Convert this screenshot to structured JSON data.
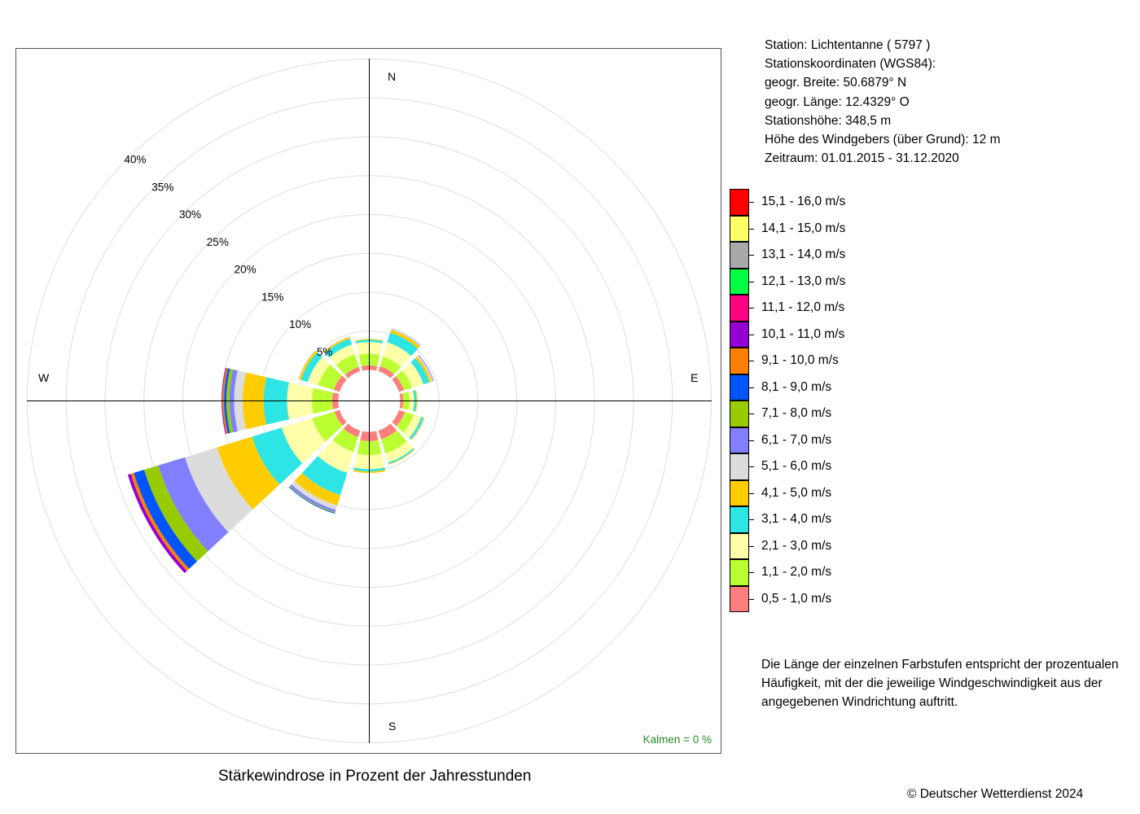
{
  "station": {
    "line1": "Station:  Lichtentanne  ( 5797 )",
    "line2": "Stationskoordinaten (WGS84):",
    "line3": "geogr. Breite: 50.6879° N",
    "line4": "geogr. Länge: 12.4329° O",
    "line5": "Stationshöhe: 348,5 m",
    "line6": "Höhe des Windgebers (über Grund): 12 m",
    "line7": "Zeitraum: 01.01.2015 - 31.12.2020"
  },
  "note": "Die Länge der einzelnen Farbstufen entspricht der prozentualen Häufigkeit, mit der die jeweilige Windgeschwindigkeit aus der angegebenen Windrichtung auftritt.",
  "copyright": "© Deutscher Wetterdienst  2024",
  "legend": {
    "items": [
      {
        "label": "15,1 - 16,0 m/s",
        "color": "#ff0000"
      },
      {
        "label": "14,1 - 15,0 m/s",
        "color": "#ffff66"
      },
      {
        "label": "13,1 - 14,0 m/s",
        "color": "#a9a9a9"
      },
      {
        "label": "12,1 - 13,0 m/s",
        "color": "#00ff44"
      },
      {
        "label": "11,1 - 12,0 m/s",
        "color": "#ff0080"
      },
      {
        "label": "10,1 - 11,0 m/s",
        "color": "#9400d3"
      },
      {
        "label": "9,1 - 10,0 m/s",
        "color": "#ff8000"
      },
      {
        "label": "8,1 - 9,0 m/s",
        "color": "#0055ff"
      },
      {
        "label": "7,1 - 8,0 m/s",
        "color": "#99cc00"
      },
      {
        "label": "6,1 - 7,0 m/s",
        "color": "#8080ff"
      },
      {
        "label": "5,1 - 6,0 m/s",
        "color": "#dcdcdc"
      },
      {
        "label": "4,1 - 5,0 m/s",
        "color": "#ffcc00"
      },
      {
        "label": "3,1 - 4,0 m/s",
        "color": "#2de5e5"
      },
      {
        "label": "2,1 - 3,0 m/s",
        "color": "#ffffaa"
      },
      {
        "label": "1,1 - 2,0 m/s",
        "color": "#bbff33"
      },
      {
        "label": "0,5 - 1,0 m/s",
        "color": "#ff7f7f"
      }
    ]
  },
  "chart_data": {
    "type": "windrose",
    "title": "Stärkewindrose in Prozent der Jahresstunden",
    "calm_label": "Kalmen  =  0 %",
    "directions": [
      "N",
      "E",
      "S",
      "W"
    ],
    "radial_ticks": [
      5,
      10,
      15,
      20,
      25,
      30,
      35,
      40
    ],
    "radial_tick_labels": [
      "5%",
      "10%",
      "15%",
      "20%",
      "25%",
      "30%",
      "35%",
      "40%"
    ],
    "rmax": 40,
    "sector_width_deg": 30,
    "speed_classes": [
      "0,5 - 1,0 m/s",
      "1,1 - 2,0 m/s",
      "2,1 - 3,0 m/s",
      "3,1 - 4,0 m/s",
      "4,1 - 5,0 m/s",
      "5,1 - 6,0 m/s",
      "6,1 - 7,0 m/s",
      "7,1 - 8,0 m/s",
      "8,1 - 9,0 m/s",
      "9,1 - 10,0 m/s",
      "10,1 - 11,0 m/s",
      "11,1 - 12,0 m/s",
      "12,1 - 13,0 m/s",
      "13,1 - 14,0 m/s",
      "14,1 - 15,0 m/s",
      "15,1 - 16,0 m/s"
    ],
    "sectors": [
      {
        "dir": 0,
        "values": [
          0.6,
          1.5,
          1.5,
          0.3,
          0.1
        ]
      },
      {
        "dir": 30,
        "values": [
          0.7,
          1.3,
          1.9,
          1.3,
          0.4,
          0.15,
          0.05
        ]
      },
      {
        "dir": 60,
        "values": [
          0.7,
          1.1,
          1.5,
          0.8,
          0.3,
          0.2,
          0.1
        ]
      },
      {
        "dir": 90,
        "values": [
          0.4,
          0.8,
          0.6,
          0.3,
          0.1,
          0.05
        ]
      },
      {
        "dir": 120,
        "values": [
          0.8,
          1.2,
          1.0,
          0.3,
          0.1,
          0.1
        ]
      },
      {
        "dir": 150,
        "values": [
          1.2,
          1.9,
          1.2,
          0.2,
          0.1
        ]
      },
      {
        "dir": 180,
        "values": [
          1.2,
          1.8,
          1.8,
          0.3,
          0.2
        ]
      },
      {
        "dir": 210,
        "values": [
          0.9,
          2.0,
          2.8,
          3.0,
          1.4,
          0.6,
          0.3,
          0.1,
          0.1
        ]
      },
      {
        "dir": 240,
        "values": [
          0.7,
          3.0,
          4.1,
          4.0,
          4.7,
          4.3,
          3.6,
          1.9,
          1.4,
          0.4,
          0.4
        ]
      },
      {
        "dir": 270,
        "values": [
          0.8,
          2.6,
          3.2,
          3.0,
          2.7,
          1.1,
          0.6,
          0.4,
          0.3,
          0.2,
          0.1
        ]
      },
      {
        "dir": 300,
        "values": [
          0.8,
          2.1,
          1.4,
          0.9,
          0.3,
          0.1
        ]
      },
      {
        "dir": 330,
        "values": [
          0.6,
          1.7,
          1.3,
          0.8,
          0.2,
          0.1
        ]
      }
    ]
  }
}
